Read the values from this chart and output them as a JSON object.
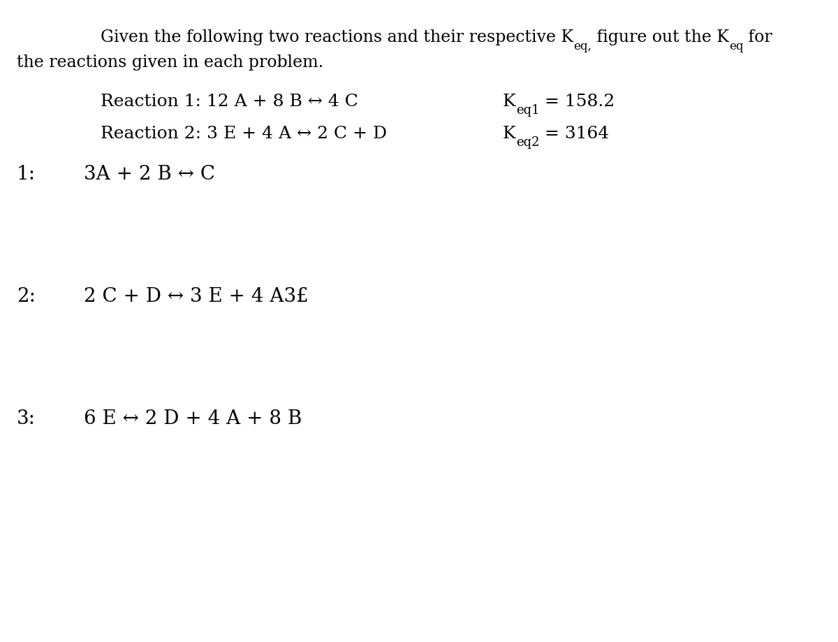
{
  "bg_color": "#ffffff",
  "fs_title": 17,
  "fs_react": 18,
  "fs_prob": 20,
  "fs_sub_title": 12,
  "fs_sub_react": 13,
  "fs_sub_prob": 15,
  "arrow": "↔",
  "title_line1_a": "Given the following two reactions and their respective K",
  "title_line1_b": "eq,",
  "title_line1_c": " figure out the K",
  "title_line1_d": "eq",
  "title_line1_e": " for",
  "title_line2": "the reactions given in each problem.",
  "r1_text": "Reaction 1: 12 A + 8 B ↔ 4 C",
  "r1_keq_a": "K",
  "r1_keq_b": "eq1",
  "r1_keq_c": " = 158.2",
  "r2_text": "Reaction 2: 3 E + 4 A ↔ 2 C + D",
  "r2_keq_a": "K",
  "r2_keq_b": "eq2",
  "r2_keq_c": " = 3164",
  "p1_num": "1:",
  "p1_eq": "3A + 2 B ↔ C",
  "p2_num": "2:",
  "p2_eq": "2 C + D ↔ 3 E + 4 A3£",
  "p3_num": "3:",
  "p3_eq": "6 E ↔ 2 D + 4 A + 8 B",
  "font_family": "DejaVu Serif"
}
